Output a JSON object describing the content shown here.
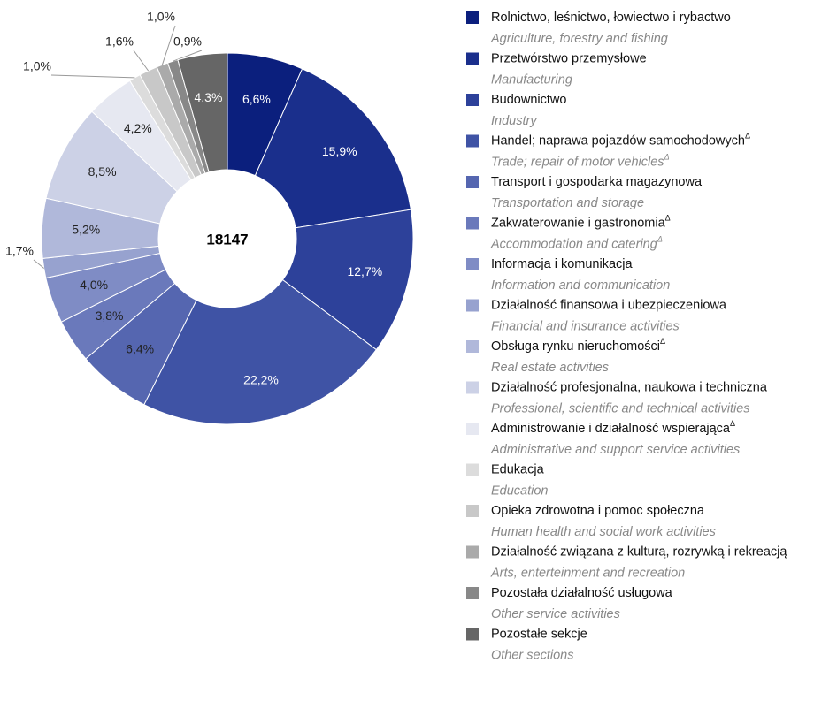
{
  "chart_data": {
    "type": "donut",
    "total": 18147,
    "categories": [
      "Rolnictwo, leśnictwo, łowiectwo i rybactwo",
      "Przetwórstwo przemysłowe",
      "Budownictwo",
      "Handel; naprawa pojazdów samochodowychΔ",
      "Transport i gospodarka magazynowa",
      "Zakwaterowanie i gastronomiaΔ",
      "Informacja i komunikacja",
      "Działalność finansowa i ubezpieczeniowa",
      "Obsługa rynku nieruchomościΔ",
      "Działalność profesjonalna, naukowa i techniczna",
      "Administrowanie i działalność wspierającaΔ",
      "Edukacja",
      "Opieka zdrowotna i pomoc społeczna",
      "Działalność związana z kulturą, rozrywką i rekreacją",
      "Pozostała działalność usługowa",
      "Pozostałe sekcje"
    ],
    "categories_en": [
      "Agriculture, forestry and fishing",
      "Manufacturing",
      "Industry",
      "Trade; repair of motor vehiclesΔ",
      "Transportation and storage",
      "Accommodation and cateringΔ",
      "Information and communication",
      "Financial and insurance activities",
      "Real estate activities",
      "Professional, scientific and technical activities",
      "Administrative and support service activities",
      "Education",
      "Human health and social work activities",
      "Arts, enterteinment and recreation",
      "Other service activities",
      "Other sections"
    ],
    "values": [
      6.6,
      15.9,
      12.7,
      22.2,
      6.4,
      3.8,
      4.0,
      1.7,
      5.2,
      8.5,
      4.2,
      1.0,
      1.6,
      1.0,
      0.9,
      4.3
    ],
    "value_labels": [
      "6,6%",
      "15,9%",
      "12,7%",
      "22,2%",
      "6,4%",
      "3,8%",
      "4,0%",
      "1,7%",
      "5,2%",
      "8,5%",
      "4,2%",
      "1,0%",
      "1,6%",
      "1,0%",
      "0,9%",
      "4,3%"
    ],
    "colors": [
      "#0b1f7d",
      "#1a2f8c",
      "#2d419a",
      "#3f53a5",
      "#5566b0",
      "#6a79bb",
      "#7f8cc5",
      "#97a2cf",
      "#b0b8da",
      "#ccd1e6",
      "#e6e8f1",
      "#dcdcdc",
      "#c8c8c8",
      "#aaaaaa",
      "#888888",
      "#666666"
    ]
  }
}
